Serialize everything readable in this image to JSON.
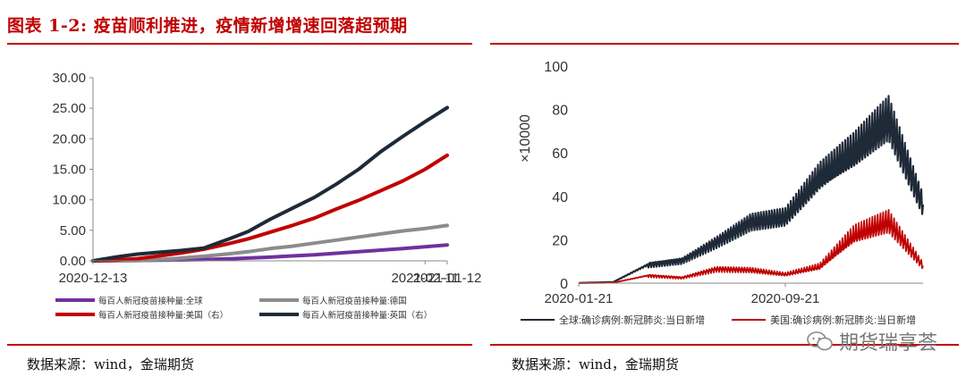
{
  "figure": {
    "title": "图表 1-2: 疫苗顺利推进，疫情新增增速回落超预期",
    "source_left": "数据来源：wind，金瑞期货",
    "source_right": "数据来源：wind，金瑞期货",
    "watermark": "期货瑞享荟",
    "accent": "#c00000"
  },
  "chart_data": [
    {
      "type": "line",
      "x": [
        "2020-12-13",
        "2020-12-17",
        "2020-12-21",
        "2020-12-25",
        "2020-12-29",
        "2021-01-02",
        "2021-01-06",
        "2021-01-10",
        "2021-01-14",
        "2021-01-18",
        "2021-01-22",
        "2021-01-26",
        "2021-01-30",
        "2021-02-03",
        "2021-02-07",
        "2021-02-11",
        "2021-02-15"
      ],
      "xticks": [
        "2020-12-13",
        "2021-01-12",
        "2021-02-11"
      ],
      "ylim": [
        0,
        30
      ],
      "yticks": [
        "0.00",
        "5.00",
        "10.00",
        "15.00",
        "20.00",
        "25.00",
        "30.00"
      ],
      "series": [
        {
          "name": "每百人新冠疫苗接种量:全球",
          "color": "#7030a0",
          "values": [
            0.0,
            0.03,
            0.06,
            0.1,
            0.14,
            0.2,
            0.3,
            0.45,
            0.6,
            0.8,
            1.0,
            1.25,
            1.5,
            1.75,
            2.0,
            2.3,
            2.6
          ]
        },
        {
          "name": "每百人新冠疫苗接种量:德国",
          "color": "#8c8c8c",
          "values": [
            0.0,
            0.0,
            0.05,
            0.2,
            0.45,
            0.75,
            1.1,
            1.5,
            2.0,
            2.4,
            2.9,
            3.4,
            3.9,
            4.4,
            4.9,
            5.3,
            5.8
          ]
        },
        {
          "name": "每百人新冠疫苗接种量:美国（右）",
          "color": "#c00000",
          "values": [
            0.0,
            0.1,
            0.35,
            0.8,
            1.3,
            1.9,
            2.7,
            3.6,
            4.7,
            5.8,
            7.0,
            8.5,
            9.9,
            11.5,
            13.1,
            15.0,
            17.3
          ]
        },
        {
          "name": "每百人新冠疫苗接种量:英国（右）",
          "color": "#1f2a38",
          "values": [
            0.0,
            0.6,
            1.1,
            1.4,
            1.7,
            2.1,
            3.4,
            4.8,
            6.8,
            8.6,
            10.4,
            12.6,
            15.0,
            17.9,
            20.4,
            22.8,
            25.1
          ]
        }
      ]
    },
    {
      "type": "line",
      "x": [
        "2020-01-21",
        "2020-03-01",
        "2020-04-10",
        "2020-05-20",
        "2020-06-29",
        "2020-08-08",
        "2020-09-21",
        "2020-10-27",
        "2020-12-06",
        "2021-01-10",
        "2021-02-20"
      ],
      "xticks": [
        "2020-01-21",
        "2020-09-21"
      ],
      "ylabel": "×10000",
      "ylim": [
        0,
        100
      ],
      "yticks": [
        "0",
        "20",
        "40",
        "60",
        "80",
        "100"
      ],
      "series": [
        {
          "name": "全球:确诊病例:新冠肺炎:当日新增",
          "color": "#1f2a38",
          "values": [
            0.1,
            0.5,
            8.5,
            10.5,
            19,
            28,
            30,
            48,
            60,
            75,
            36
          ]
        },
        {
          "name": "美国:确诊病例:新冠肺炎:当日新增",
          "color": "#c00000",
          "values": [
            0.0,
            0.2,
            3.5,
            2.5,
            6.5,
            6.0,
            4.0,
            7.5,
            22,
            28,
            8
          ]
        }
      ]
    }
  ]
}
